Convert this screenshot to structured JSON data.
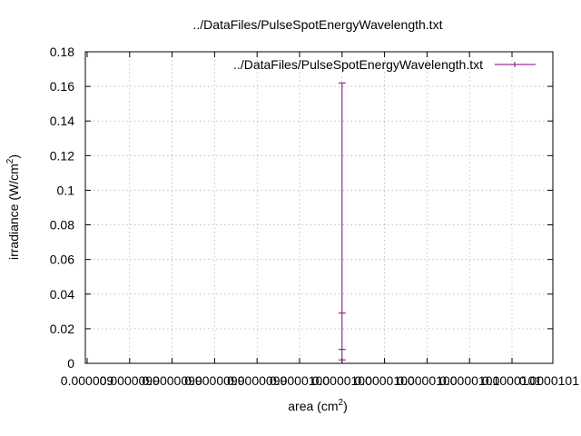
{
  "chart_data": {
    "type": "line",
    "title": "../DataFiles/PulseSpotEnergyWavelength.txt",
    "xlabel_main": "area (cm",
    "xlabel_sup": "2",
    "xlabel_close": ")",
    "ylabel_main": "irradiance (W/cm",
    "ylabel_sup": "2",
    "ylabel_close": ")",
    "ylim": [
      0,
      0.18
    ],
    "yticks": [
      0,
      0.02,
      0.04,
      0.06,
      0.08,
      0.1,
      0.12,
      0.14,
      0.16,
      0.18
    ],
    "ytick_labels": [
      "0",
      "0.02",
      "0.04",
      "0.06",
      "0.08",
      "0.1",
      "0.12",
      "0.14",
      "0.16",
      "0.18"
    ],
    "xticks_index": [
      0,
      1,
      2,
      3,
      4,
      5,
      6,
      7,
      8,
      9,
      10,
      11
    ],
    "xtick_labels": [
      "0.000009",
      "0.0000099",
      "0.0000099",
      "0.0000099",
      "0.0000099",
      "0.0000100",
      "0.0000100",
      "0.0000100",
      "0.0000100",
      "0.0000101",
      "0.0000101",
      "0.0000101"
    ],
    "series": [
      {
        "name": "../DataFiles/PulseSpotEnergyWavelength.txt",
        "color": "#800080",
        "x_index": [
          6,
          6,
          6,
          6
        ],
        "y": [
          0.162,
          0.029,
          0.008,
          0.002
        ]
      }
    ],
    "grid": true,
    "legend_position": "top-right"
  }
}
